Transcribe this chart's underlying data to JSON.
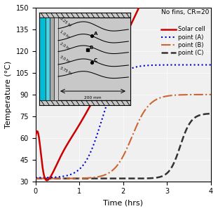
{
  "title": "No fins, CR=20",
  "xlabel": "Time (hrs)",
  "ylabel": "Temperature (°C)",
  "xlim": [
    0,
    4
  ],
  "ylim": [
    30,
    150
  ],
  "yticks": [
    30,
    45,
    60,
    75,
    90,
    105,
    120,
    135,
    150
  ],
  "xticks": [
    0,
    1,
    2,
    3,
    4
  ],
  "solar_cell_color": "#cc0000",
  "point_A_color": "#0000cc",
  "point_B_color": "#cc6633",
  "point_C_color": "#333333",
  "background_color": "#f0f0f0",
  "legend_labels": [
    "Solar cell",
    "point (A)",
    "point (B)",
    "point (C)"
  ],
  "inset_bg": "#c8c8c8",
  "cyan1": "#00bcd4",
  "cyan2": "#4dd0e1",
  "gray1": "#aaaaaa",
  "gray2": "#cccccc"
}
